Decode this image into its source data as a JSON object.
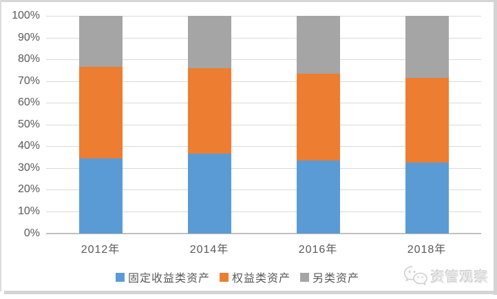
{
  "chart_data": {
    "type": "bar",
    "subtype": "stacked-100-percent",
    "title": "",
    "xlabel": "",
    "ylabel": "",
    "categories": [
      "2012年",
      "2014年",
      "2016年",
      "2018年"
    ],
    "series": [
      {
        "name": "固定收益类资产",
        "color": "#5B9BD5",
        "values": [
          34.5,
          36.5,
          33.5,
          32.5
        ]
      },
      {
        "name": "权益类资产",
        "color": "#ED7D31",
        "values": [
          42.0,
          39.5,
          40.0,
          39.0
        ]
      },
      {
        "name": "另类资产",
        "color": "#A5A5A5",
        "values": [
          23.5,
          24.0,
          26.5,
          28.5
        ]
      }
    ],
    "y_ticks": [
      "0%",
      "10%",
      "20%",
      "30%",
      "40%",
      "50%",
      "60%",
      "70%",
      "80%",
      "90%",
      "100%"
    ],
    "ylim": [
      0,
      100
    ],
    "grid": true,
    "legend_position": "bottom",
    "colors": {
      "gridline": "#D9D9D9",
      "axis_line": "#BFBFBF",
      "tick_label": "#595959"
    }
  },
  "watermark": {
    "text": "资管观察",
    "icon": "wechat-icon"
  }
}
